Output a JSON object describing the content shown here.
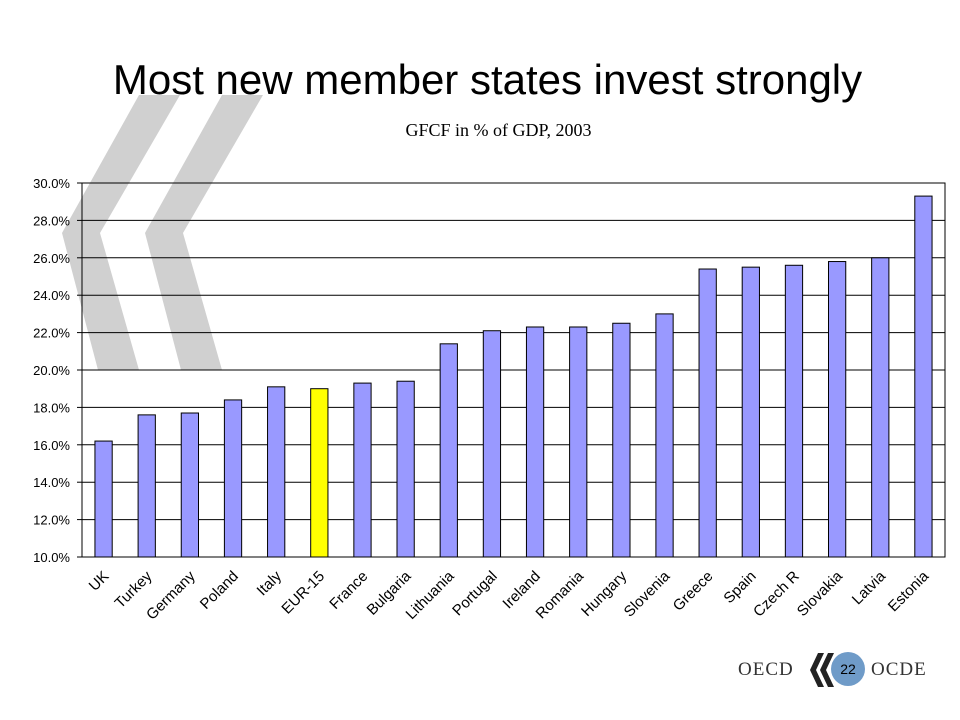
{
  "title": "Most new member states invest strongly",
  "subtitle": "GFCF in % of GDP, 2003",
  "footer": {
    "left_text": "OECD",
    "right_text": "OCDE",
    "page_number": "22"
  },
  "colors": {
    "bar": "#9999ff",
    "highlight_bar": "#ffff00",
    "bar_outline": "#000000",
    "watermark": "#d0d0d0",
    "logo_circle": "#6f9bc8"
  },
  "chart_data": {
    "type": "bar",
    "title": "GFCF in % of GDP, 2003",
    "categories": [
      "UK",
      "Turkey",
      "Germany",
      "Poland",
      "Italy",
      "EUR-15",
      "France",
      "Bulgaria",
      "Lithuania",
      "Portugal",
      "Ireland",
      "Romania",
      "Hungary",
      "Slovenia",
      "Greece",
      "Spain",
      "Czech R",
      "Slovakia",
      "Latvia",
      "Estonia"
    ],
    "values": [
      16.2,
      17.6,
      17.7,
      18.4,
      19.1,
      19.0,
      19.3,
      19.4,
      21.4,
      22.1,
      22.3,
      22.3,
      22.5,
      23.0,
      25.4,
      25.5,
      25.6,
      25.8,
      26.0,
      29.3
    ],
    "highlight_category": "EUR-15",
    "ylim": [
      10,
      30
    ],
    "yticks": [
      10,
      12,
      14,
      16,
      18,
      20,
      22,
      24,
      26,
      28,
      30
    ],
    "ytick_labels": [
      "10.0%",
      "12.0%",
      "14.0%",
      "16.0%",
      "18.0%",
      "20.0%",
      "22.0%",
      "24.0%",
      "26.0%",
      "28.0%",
      "30.0%"
    ],
    "grid": true,
    "legend": "none"
  }
}
